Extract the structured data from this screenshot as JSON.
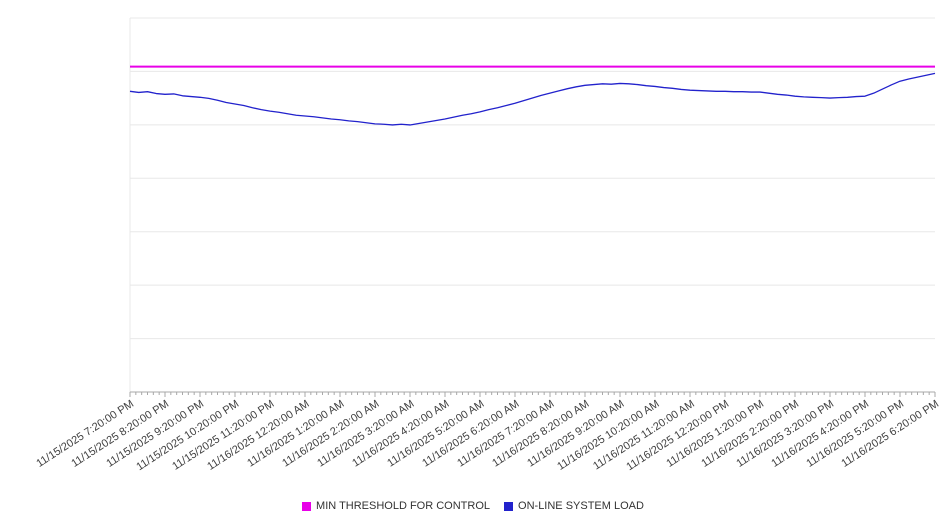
{
  "page": {
    "background": "#ffffff"
  },
  "chart_data": {
    "type": "line",
    "title": "",
    "xlabel": "",
    "ylabel": "",
    "ylim": [
      0,
      100
    ],
    "y_axis_labels_visible": false,
    "gridlines": "horizontal",
    "grid_intervals": 7,
    "grid_color": "#e8e8e8",
    "axis_color": "#a8a8a8",
    "legend_position": "bottom-center",
    "x_tick_minutes": 10,
    "x_labels": [
      "11/15/2025 7:20:00 PM",
      "11/15/2025 8:20:00 PM",
      "11/15/2025 9:20:00 PM",
      "11/15/2025 10:20:00 PM",
      "11/15/2025 11:20:00 PM",
      "11/16/2025 12:20:00 AM",
      "11/16/2025 1:20:00 AM",
      "11/16/2025 2:20:00 AM",
      "11/16/2025 3:20:00 AM",
      "11/16/2025 4:20:00 AM",
      "11/16/2025 5:20:00 AM",
      "11/16/2025 6:20:00 AM",
      "11/16/2025 7:20:00 AM",
      "11/16/2025 8:20:00 AM",
      "11/16/2025 9:20:00 AM",
      "11/16/2025 10:20:00 AM",
      "11/16/2025 11:20:00 AM",
      "11/16/2025 12:20:00 PM",
      "11/16/2025 1:20:00 PM",
      "11/16/2025 2:20:00 PM",
      "11/16/2025 3:20:00 PM",
      "11/16/2025 4:20:00 PM",
      "11/16/2025 5:20:00 PM",
      "11/16/2025 6:20:00 PM"
    ],
    "series": [
      {
        "name": "MIN THRESHOLD FOR CONTROL",
        "color": "#e800e8",
        "style": "constant",
        "value": 87.0
      },
      {
        "name": "ON-LINE SYSTEM LOAD",
        "color": "#2222cc",
        "style": "line",
        "values": [
          80.4,
          80.1,
          80.3,
          79.8,
          79.6,
          79.7,
          79.2,
          79.0,
          78.8,
          78.5,
          78.0,
          77.4,
          77.0,
          76.6,
          76.0,
          75.5,
          75.1,
          74.8,
          74.4,
          74.0,
          73.8,
          73.6,
          73.3,
          73.0,
          72.8,
          72.5,
          72.3,
          72.0,
          71.7,
          71.6,
          71.4,
          71.6,
          71.4,
          71.8,
          72.2,
          72.6,
          73.0,
          73.5,
          74.0,
          74.4,
          74.9,
          75.5,
          76.0,
          76.6,
          77.2,
          77.9,
          78.6,
          79.3,
          79.9,
          80.5,
          81.1,
          81.6,
          82.0,
          82.2,
          82.4,
          82.3,
          82.5,
          82.4,
          82.2,
          81.9,
          81.7,
          81.4,
          81.2,
          80.9,
          80.7,
          80.6,
          80.5,
          80.4,
          80.4,
          80.3,
          80.3,
          80.2,
          80.2,
          79.9,
          79.6,
          79.4,
          79.1,
          78.9,
          78.8,
          78.7,
          78.6,
          78.7,
          78.8,
          79.0,
          79.1,
          79.9,
          81.0,
          82.1,
          83.1,
          83.7,
          84.2,
          84.7,
          85.2
        ]
      }
    ]
  }
}
